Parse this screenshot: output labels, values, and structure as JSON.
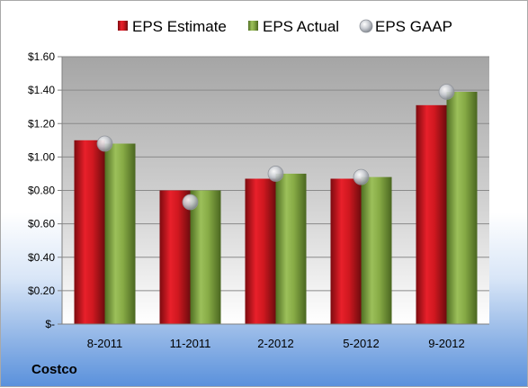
{
  "company": "Costco",
  "chart_data": {
    "type": "bar",
    "categories": [
      "8-2011",
      "11-2011",
      "2-2012",
      "5-2012",
      "9-2012"
    ],
    "series": [
      {
        "name": "EPS Estimate",
        "type": "bar",
        "color": "#c0141c",
        "values": [
          1.1,
          0.8,
          0.87,
          0.87,
          1.31
        ]
      },
      {
        "name": "EPS Actual",
        "type": "bar",
        "color": "#7ea341",
        "values": [
          1.08,
          0.8,
          0.9,
          0.88,
          1.39
        ]
      },
      {
        "name": "EPS GAAP",
        "type": "scatter",
        "color": "#b8bcc4",
        "values": [
          1.08,
          0.73,
          0.9,
          0.88,
          1.39
        ]
      }
    ],
    "yticks": [
      "$-",
      "$0.20",
      "$0.40",
      "$0.60",
      "$0.80",
      "$1.00",
      "$1.20",
      "$1.40",
      "$1.60"
    ],
    "ylim": [
      0,
      1.6
    ],
    "grid": true,
    "legend": "top"
  }
}
